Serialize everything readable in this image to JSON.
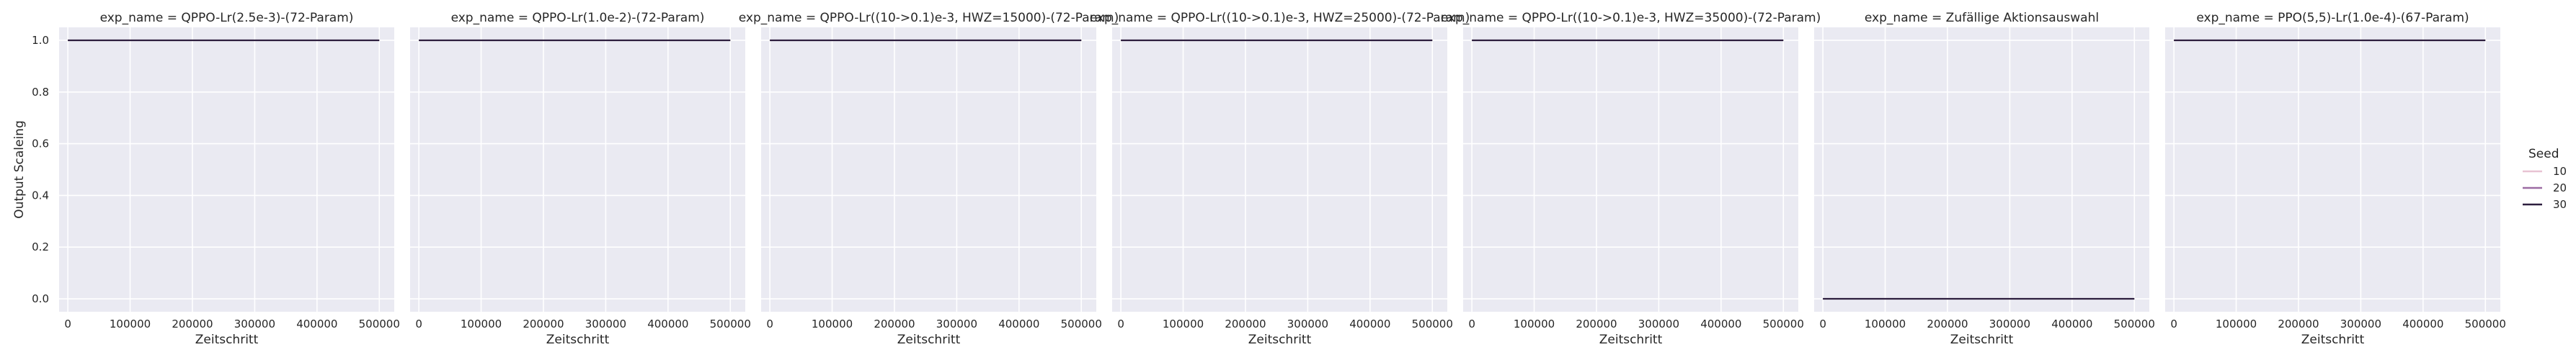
{
  "chart_data": {
    "type": "line",
    "facet_column": "exp_name",
    "facet_title_template": "exp_name = {}",
    "xlabel": "Zeitschritt",
    "ylabel": "Output Scaleing",
    "xlim": [
      -14000,
      524000
    ],
    "ylim": [
      -0.05,
      1.05
    ],
    "x_ticks": [
      0,
      100000,
      200000,
      300000,
      400000,
      500000
    ],
    "y_ticks": [
      0.0,
      0.2,
      0.4,
      0.6,
      0.8,
      1.0
    ],
    "y_tick_labels": [
      "0.0",
      "0.2",
      "0.4",
      "0.6",
      "0.8",
      "1.0"
    ],
    "grid": true,
    "legend": {
      "title": "Seed",
      "placement": "right",
      "entries": [
        {
          "label": "10",
          "color": "#e8c3d3"
        },
        {
          "label": "20",
          "color": "#9c6ba3"
        },
        {
          "label": "30",
          "color": "#2d1e3e"
        }
      ]
    },
    "panels": [
      {
        "exp_name": "QPPO-Lr(2.5e-3)-(72-Param)",
        "series": [
          {
            "seed": "30",
            "x": [
              0,
              500000
            ],
            "y": [
              1.0,
              1.0
            ]
          }
        ]
      },
      {
        "exp_name": "QPPO-Lr(1.0e-2)-(72-Param)",
        "series": [
          {
            "seed": "30",
            "x": [
              0,
              500000
            ],
            "y": [
              1.0,
              1.0
            ]
          }
        ]
      },
      {
        "exp_name": "QPPO-Lr((10->0.1)e-3, HWZ=15000)-(72-Param)",
        "series": [
          {
            "seed": "30",
            "x": [
              0,
              500000
            ],
            "y": [
              1.0,
              1.0
            ]
          }
        ]
      },
      {
        "exp_name": "QPPO-Lr((10->0.1)e-3, HWZ=25000)-(72-Param)",
        "series": [
          {
            "seed": "30",
            "x": [
              0,
              500000
            ],
            "y": [
              1.0,
              1.0
            ]
          }
        ]
      },
      {
        "exp_name": "QPPO-Lr((10->0.1)e-3, HWZ=35000)-(72-Param)",
        "series": [
          {
            "seed": "30",
            "x": [
              0,
              500000
            ],
            "y": [
              1.0,
              1.0
            ]
          }
        ]
      },
      {
        "exp_name": "Zufällige Aktionsauswahl",
        "series": [
          {
            "seed": "30",
            "x": [
              0,
              500000
            ],
            "y": [
              0.0,
              0.0
            ]
          }
        ]
      },
      {
        "exp_name": "PPO(5,5)-Lr(1.0e-4)-(67-Param)",
        "series": [
          {
            "seed": "30",
            "x": [
              0,
              500000
            ],
            "y": [
              1.0,
              1.0
            ]
          }
        ]
      }
    ]
  }
}
